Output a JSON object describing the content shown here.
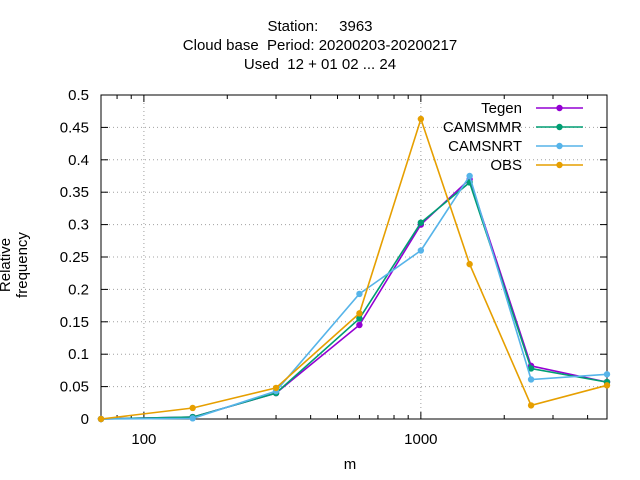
{
  "chart_data": {
    "type": "line",
    "title_lines": [
      "Station:     3963",
      "Cloud base  Period: 20200203-20200217",
      "Used  12 + 01 02 ... 24"
    ],
    "xlabel": "m",
    "ylabel": "Relative frequency",
    "x_scale": "log",
    "xlim": [
      70,
      4700
    ],
    "ylim": [
      0,
      0.5
    ],
    "x_ticks": [
      100,
      1000
    ],
    "x_tick_labels": [
      "100",
      "1000"
    ],
    "y_ticks": [
      0,
      0.05,
      0.1,
      0.15,
      0.2,
      0.25,
      0.3,
      0.35,
      0.4,
      0.45,
      0.5
    ],
    "y_tick_labels": [
      "0",
      "0.05",
      "0.1",
      "0.15",
      "0.2",
      "0.25",
      "0.3",
      "0.35",
      "0.4",
      "0.45",
      "0.5"
    ],
    "grid": true,
    "legend_position": "top-right",
    "x": [
      70,
      150,
      300,
      600,
      1000,
      1500,
      2500,
      4700
    ],
    "series": [
      {
        "name": "Tegen",
        "color": "#9400d3",
        "values": [
          0.0,
          0.003,
          0.04,
          0.145,
          0.3,
          0.37,
          0.082,
          0.057
        ]
      },
      {
        "name": "CAMSMMR",
        "color": "#009e73",
        "values": [
          0.0,
          0.003,
          0.04,
          0.155,
          0.303,
          0.365,
          0.078,
          0.057
        ]
      },
      {
        "name": "CAMSNRT",
        "color": "#56b4e9",
        "values": [
          0.0,
          0.001,
          0.043,
          0.193,
          0.26,
          0.375,
          0.061,
          0.069
        ]
      },
      {
        "name": "OBS",
        "color": "#e69f00",
        "values": [
          0.0,
          0.017,
          0.048,
          0.163,
          0.463,
          0.239,
          0.021,
          0.052
        ]
      }
    ]
  }
}
